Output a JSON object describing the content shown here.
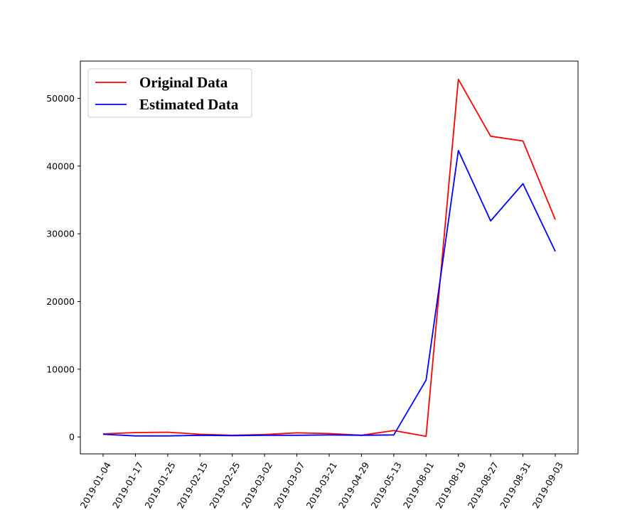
{
  "chart_data": {
    "type": "line",
    "title": "",
    "xlabel": "",
    "ylabel": "",
    "categories": [
      "2019-01-04",
      "2019-01-17",
      "2019-01-25",
      "2019-02-15",
      "2019-02-25",
      "2019-03-02",
      "2019-03-07",
      "2019-03-21",
      "2019-04-29",
      "2019-05-13",
      "2019-08-01",
      "2019-08-19",
      "2019-08-27",
      "2019-08-31",
      "2019-09-03"
    ],
    "y_ticks": [
      "0",
      "10000",
      "20000",
      "30000",
      "40000",
      "50000"
    ],
    "ylim": [
      -2500,
      55500
    ],
    "grid": false,
    "legend_position": "top-left",
    "series": [
      {
        "name": "Original Data",
        "color": "#ff0000",
        "values": [
          450,
          650,
          700,
          400,
          250,
          350,
          600,
          500,
          250,
          950,
          100,
          52800,
          44400,
          43700,
          32100
        ]
      },
      {
        "name": "Estimated Data",
        "color": "#0000ff",
        "values": [
          400,
          150,
          150,
          250,
          200,
          250,
          250,
          300,
          250,
          300,
          8400,
          42300,
          31900,
          37400,
          27400
        ]
      }
    ]
  }
}
